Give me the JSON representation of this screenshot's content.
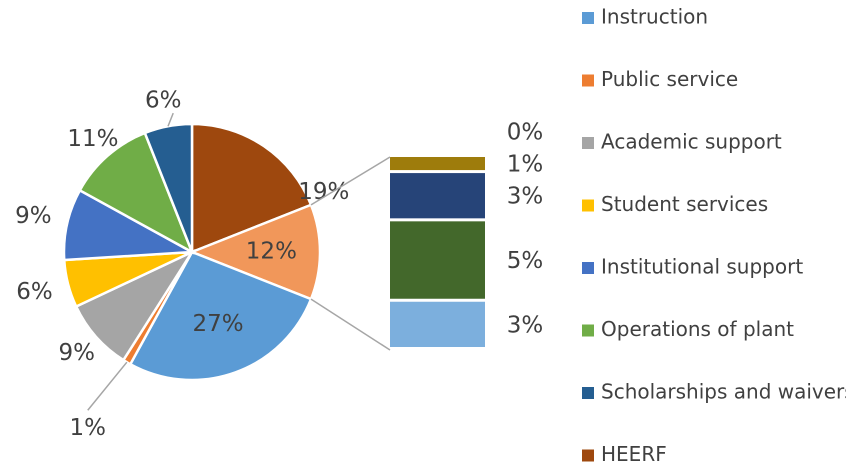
{
  "chart_data": {
    "type": "pie-of-bar",
    "legend": [
      {
        "name": "Instruction",
        "color": "#5b9bd5"
      },
      {
        "name": "Public service",
        "color": "#ed7d31"
      },
      {
        "name": "Academic support",
        "color": "#a5a5a5"
      },
      {
        "name": "Student services",
        "color": "#ffc000"
      },
      {
        "name": "Institutional support",
        "color": "#4472c4"
      },
      {
        "name": "Operations of plant",
        "color": "#70ad47"
      },
      {
        "name": "Scholarships and waivers",
        "color": "#255e91"
      },
      {
        "name": "HEERF",
        "color": "#9e480e"
      }
    ],
    "slices": [
      {
        "value": 19,
        "label": "19%",
        "color": "#9e480e"
      },
      {
        "value": 12,
        "label": "12%",
        "color": "#f1975a"
      },
      {
        "value": 27,
        "label": "27%",
        "color": "#5b9bd5"
      },
      {
        "value": 1,
        "label": "1%",
        "color": "#ed7d31"
      },
      {
        "value": 9,
        "label": "9%",
        "color": "#a5a5a5"
      },
      {
        "value": 6,
        "label": "6%",
        "color": "#ffc000"
      },
      {
        "value": 9,
        "label": "9%",
        "color": "#4472c4"
      },
      {
        "value": 11,
        "label": "11%",
        "color": "#70ad47"
      },
      {
        "value": 6,
        "label": "6%",
        "color": "#255e91"
      }
    ],
    "bar": [
      {
        "value": 3,
        "label": "3%",
        "color": "#7cafdd"
      },
      {
        "value": 5,
        "label": "5%",
        "color": "#43682b"
      },
      {
        "value": 3,
        "label": "3%",
        "color": "#264478"
      },
      {
        "value": 1,
        "label": "1%",
        "color": "#9e7c0c"
      },
      {
        "value": 0,
        "label": "0%",
        "color": "#bf9000"
      }
    ]
  }
}
